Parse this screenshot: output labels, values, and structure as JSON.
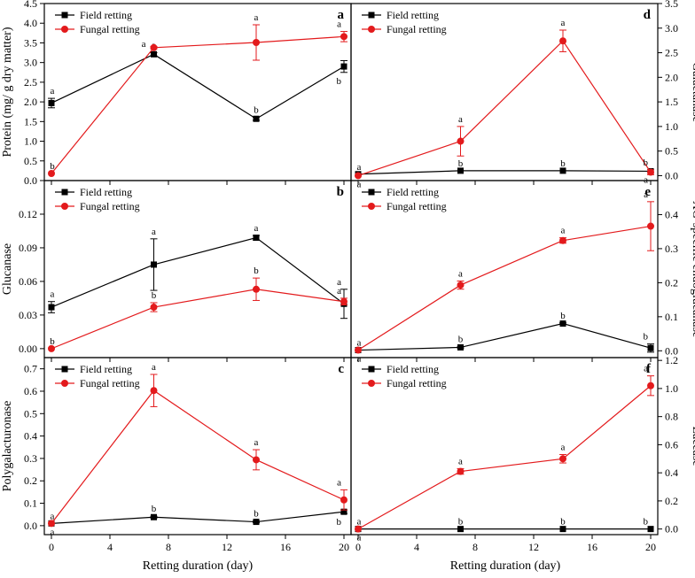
{
  "figure_xlabel": "Retting duration (day)",
  "chart_data": [
    {
      "id": "a",
      "panel_label": "a",
      "type": "line",
      "ylabel": "Protein (mg/ g dry matter)",
      "ylabel_side": "left",
      "xlim": [
        0,
        20
      ],
      "ylim": [
        0,
        4.5
      ],
      "xticks": [
        0,
        4,
        8,
        12,
        16,
        20
      ],
      "show_xtick_labels": false,
      "yticks": [
        0,
        0.5,
        1.0,
        1.5,
        2.0,
        2.5,
        3.0,
        3.5,
        4.0,
        4.5
      ],
      "yticklabels": [
        "0.0",
        "0.5",
        "1.0",
        "1.5",
        "2.0",
        "2.5",
        "3.0",
        "3.5",
        "4.0",
        "4.5"
      ],
      "x": [
        0,
        7,
        14,
        20
      ],
      "series": [
        {
          "name": "Field retting",
          "color": "#000000",
          "marker": "square",
          "values": [
            1.97,
            3.21,
            1.57,
            2.9
          ],
          "errors": [
            0.12,
            0.04,
            0.04,
            0.15
          ],
          "letters": [
            "a",
            "a",
            "b",
            "b"
          ],
          "letter_pos": [
            "above",
            "above",
            "above",
            "below"
          ]
        },
        {
          "name": "Fungal retting",
          "color": "#e31a1c",
          "marker": "circle",
          "values": [
            0.18,
            3.38,
            3.51,
            3.66
          ],
          "errors": [
            0.0,
            0.03,
            0.45,
            0.13
          ],
          "letters": [
            "b",
            "a",
            "a",
            "a"
          ],
          "letter_pos": [
            "above",
            "left",
            "above",
            "above"
          ]
        }
      ]
    },
    {
      "id": "b",
      "panel_label": "b",
      "type": "line",
      "ylabel": "Glucanase",
      "ylabel_side": "left",
      "xlim": [
        0,
        20
      ],
      "ylim": [
        -0.008,
        0.15
      ],
      "xticks": [
        0,
        4,
        8,
        12,
        16,
        20
      ],
      "show_xtick_labels": false,
      "yticks": [
        0,
        0.03,
        0.06,
        0.09,
        0.12
      ],
      "yticklabels": [
        "0.00",
        "0.03",
        "0.06",
        "0.09",
        "0.12"
      ],
      "x": [
        0,
        7,
        14,
        20
      ],
      "series": [
        {
          "name": "Field retting",
          "color": "#000000",
          "marker": "square",
          "values": [
            0.037,
            0.075,
            0.099,
            0.04
          ],
          "errors": [
            0.005,
            0.023,
            0.002,
            0.013
          ],
          "letters": [
            "a",
            "a",
            "a",
            "a"
          ],
          "letter_pos": [
            "above",
            "above",
            "above",
            "above"
          ]
        },
        {
          "name": "Fungal retting",
          "color": "#e31a1c",
          "marker": "circle",
          "values": [
            0.0,
            0.037,
            0.053,
            0.042
          ],
          "errors": [
            0.0,
            0.004,
            0.01,
            0.003
          ],
          "letters": [
            "b",
            "b",
            "b",
            "a"
          ],
          "letter_pos": [
            "above",
            "above",
            "above",
            "above"
          ]
        }
      ]
    },
    {
      "id": "c",
      "panel_label": "c",
      "type": "line",
      "ylabel": "Polygalacturonase",
      "ylabel_side": "left",
      "xlim": [
        0,
        20
      ],
      "ylim": [
        -0.04,
        0.75
      ],
      "xticks": [
        0,
        4,
        8,
        12,
        16,
        20
      ],
      "show_xtick_labels": true,
      "yticks": [
        0,
        0.1,
        0.2,
        0.3,
        0.4,
        0.5,
        0.6,
        0.7
      ],
      "yticklabels": [
        "0.0",
        "0.1",
        "0.2",
        "0.3",
        "0.4",
        "0.5",
        "0.6",
        "0.7"
      ],
      "x": [
        0,
        7,
        14,
        20
      ],
      "series": [
        {
          "name": "Field retting",
          "color": "#000000",
          "marker": "square",
          "values": [
            0.01,
            0.038,
            0.017,
            0.062
          ],
          "errors": [
            0.0,
            0.004,
            0.004,
            0.008
          ],
          "letters": [
            "a",
            "b",
            "b",
            "b"
          ],
          "letter_pos": [
            "below",
            "above",
            "above",
            "below"
          ]
        },
        {
          "name": "Fungal retting",
          "color": "#e31a1c",
          "marker": "circle",
          "values": [
            0.01,
            0.603,
            0.294,
            0.115
          ],
          "errors": [
            0.0,
            0.072,
            0.045,
            0.045
          ],
          "letters": [
            "a",
            "a",
            "a",
            "a"
          ],
          "letter_pos": [
            "above",
            "above",
            "above",
            "above"
          ]
        }
      ]
    },
    {
      "id": "d",
      "panel_label": "d",
      "type": "line",
      "ylabel": "Galactanase",
      "ylabel_side": "right",
      "xlim": [
        0,
        20
      ],
      "ylim": [
        -0.1,
        3.5
      ],
      "xticks": [
        0,
        4,
        8,
        12,
        16,
        20
      ],
      "show_xtick_labels": false,
      "yticks": [
        0,
        0.5,
        1.0,
        1.5,
        2.0,
        2.5,
        3.0,
        3.5
      ],
      "yticklabels": [
        "0.0",
        "0.5",
        "1.0",
        "1.5",
        "2.0",
        "2.5",
        "3.0",
        "3.5"
      ],
      "x": [
        0,
        7,
        14,
        20
      ],
      "series": [
        {
          "name": "Field retting",
          "color": "#000000",
          "marker": "square",
          "values": [
            0.03,
            0.1,
            0.1,
            0.09
          ],
          "errors": [
            0.0,
            0.0,
            0.0,
            0.0
          ],
          "letters": [
            "a",
            "b",
            "b",
            "a"
          ],
          "letter_pos": [
            "above",
            "above",
            "above",
            "below"
          ]
        },
        {
          "name": "Fungal retting",
          "color": "#e31a1c",
          "marker": "circle",
          "values": [
            0.0,
            0.7,
            2.74,
            0.07
          ],
          "errors": [
            0.0,
            0.3,
            0.22,
            0.05
          ],
          "letters": [
            "a",
            "a",
            "a",
            "b"
          ],
          "letter_pos": [
            "below",
            "above",
            "above",
            "above"
          ]
        }
      ]
    },
    {
      "id": "e",
      "panel_label": "e",
      "type": "line",
      "ylabel": "XG-specific endoglucanase",
      "ylabel_side": "right",
      "xlim": [
        0,
        20
      ],
      "ylim": [
        -0.02,
        0.5
      ],
      "xticks": [
        0,
        4,
        8,
        12,
        16,
        20
      ],
      "show_xtick_labels": false,
      "yticks": [
        0,
        0.1,
        0.2,
        0.3,
        0.4
      ],
      "yticklabels": [
        "0.0",
        "0.1",
        "0.2",
        "0.3",
        "0.4"
      ],
      "x": [
        0,
        7,
        14,
        20
      ],
      "series": [
        {
          "name": "Field retting",
          "color": "#000000",
          "marker": "square",
          "values": [
            0.002,
            0.01,
            0.08,
            0.008
          ],
          "errors": [
            0.0,
            0.002,
            0.002,
            0.012
          ],
          "letters": [
            "a",
            "b",
            "b",
            "b"
          ],
          "letter_pos": [
            "below",
            "above",
            "above",
            "above"
          ]
        },
        {
          "name": "Fungal retting",
          "color": "#e31a1c",
          "marker": "circle",
          "values": [
            0.002,
            0.193,
            0.324,
            0.366
          ],
          "errors": [
            0.0,
            0.012,
            0.008,
            0.072
          ],
          "letters": [
            "a",
            "a",
            "a",
            "a"
          ],
          "letter_pos": [
            "above",
            "above",
            "above",
            "above"
          ]
        }
      ]
    },
    {
      "id": "f",
      "panel_label": "f",
      "type": "line",
      "ylabel": "Laccase",
      "ylabel_side": "right",
      "xlim": [
        0,
        20
      ],
      "ylim": [
        -0.04,
        1.22
      ],
      "xticks": [
        0,
        4,
        8,
        12,
        16,
        20
      ],
      "show_xtick_labels": true,
      "yticks": [
        0,
        0.2,
        0.4,
        0.6,
        0.8,
        1.0,
        1.2
      ],
      "yticklabels": [
        "0.0",
        "0.2",
        "0.4",
        "0.6",
        "0.8",
        "1.0",
        "1.2"
      ],
      "x": [
        0,
        7,
        14,
        20
      ],
      "series": [
        {
          "name": "Field retting",
          "color": "#000000",
          "marker": "square",
          "values": [
            0.0,
            0.0,
            0.0,
            0.0
          ],
          "errors": [
            0.0,
            0.0,
            0.0,
            0.0
          ],
          "letters": [
            "a",
            "b",
            "b",
            "b"
          ],
          "letter_pos": [
            "above",
            "above",
            "above",
            "above"
          ]
        },
        {
          "name": "Fungal retting",
          "color": "#e31a1c",
          "marker": "circle",
          "values": [
            0.0,
            0.41,
            0.5,
            1.02
          ],
          "errors": [
            0.0,
            0.02,
            0.03,
            0.07
          ],
          "letters": [
            "a",
            "a",
            "a",
            "a"
          ],
          "letter_pos": [
            "below",
            "above",
            "above",
            "above"
          ]
        }
      ]
    }
  ]
}
